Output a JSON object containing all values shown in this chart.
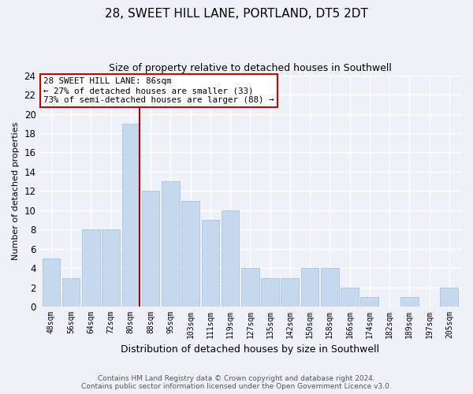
{
  "title": "28, SWEET HILL LANE, PORTLAND, DT5 2DT",
  "subtitle": "Size of property relative to detached houses in Southwell",
  "xlabel": "Distribution of detached houses by size in Southwell",
  "ylabel": "Number of detached properties",
  "categories": [
    "48sqm",
    "56sqm",
    "64sqm",
    "72sqm",
    "80sqm",
    "88sqm",
    "95sqm",
    "103sqm",
    "111sqm",
    "119sqm",
    "127sqm",
    "135sqm",
    "142sqm",
    "150sqm",
    "158sqm",
    "166sqm",
    "174sqm",
    "182sqm",
    "189sqm",
    "197sqm",
    "205sqm"
  ],
  "values": [
    5,
    3,
    8,
    8,
    19,
    12,
    13,
    11,
    9,
    10,
    4,
    3,
    3,
    4,
    4,
    2,
    1,
    0,
    1,
    0,
    2
  ],
  "bar_color": "#c5d8ed",
  "bar_edge_color": "#a8c4d8",
  "ylim": [
    0,
    24
  ],
  "yticks": [
    0,
    2,
    4,
    6,
    8,
    10,
    12,
    14,
    16,
    18,
    20,
    22,
    24
  ],
  "annotation_title": "28 SWEET HILL LANE: 86sqm",
  "annotation_line1": "← 27% of detached houses are smaller (33)",
  "annotation_line2": "73% of semi-detached houses are larger (88) →",
  "vline_color": "#aa0000",
  "annotation_box_color": "#ffffff",
  "annotation_box_edge_color": "#cc0000",
  "background_color": "#eef2f8",
  "grid_color": "#ffffff",
  "footer1": "Contains HM Land Registry data © Crown copyright and database right 2024.",
  "footer2": "Contains public sector information licensed under the Open Government Licence v3.0."
}
